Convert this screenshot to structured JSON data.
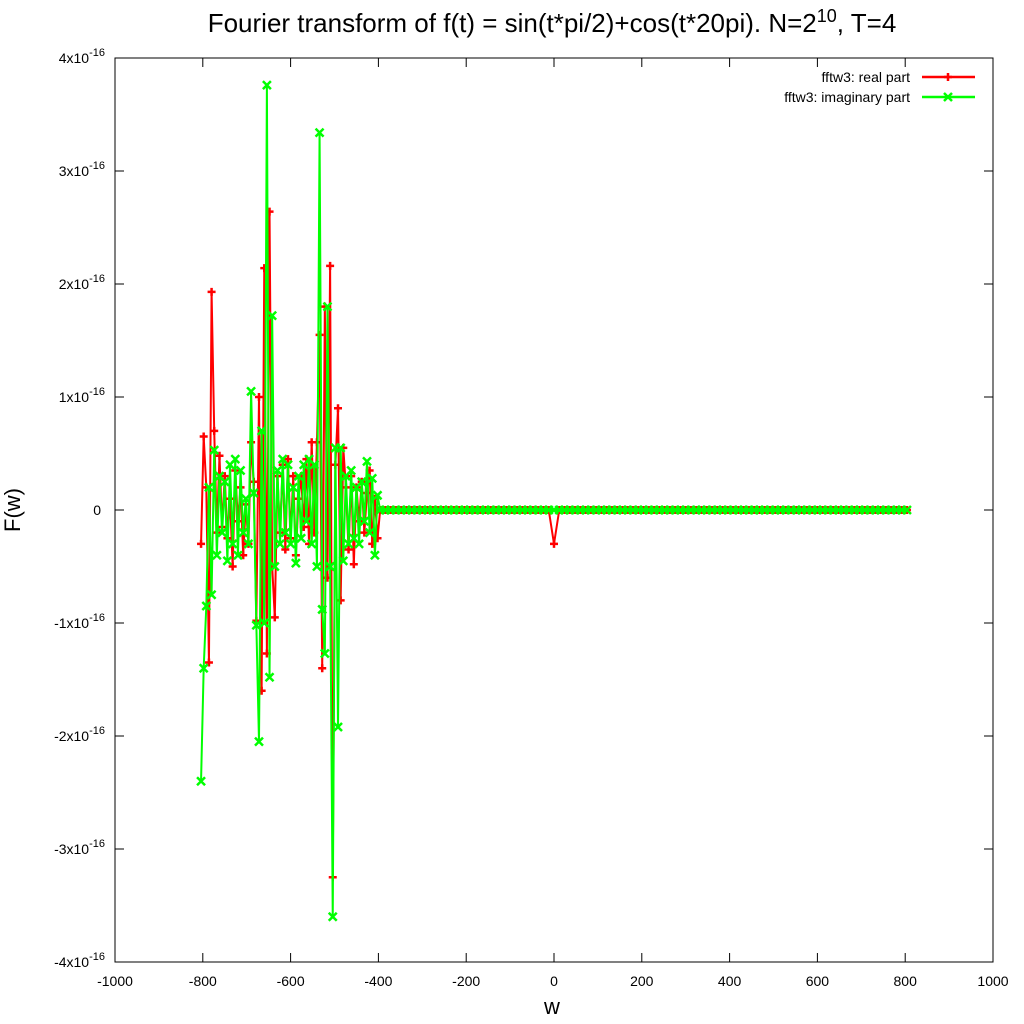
{
  "chart_data": {
    "type": "line",
    "title": [
      "Fourier transform of f(t) = sin(t*pi/2)+cos(t*20pi). N=2",
      "10",
      ", T=4"
    ],
    "xlabel": "w",
    "ylabel": "F(w)",
    "xlim": [
      -1000,
      1000
    ],
    "xticks": [
      -1000,
      -800,
      -600,
      -400,
      -200,
      0,
      200,
      400,
      600,
      800,
      1000
    ],
    "ylim": [
      -4e-16,
      4e-16
    ],
    "yticks": [
      {
        "value": -4e-16,
        "label": "-4x10",
        "sup": "-16"
      },
      {
        "value": -3e-16,
        "label": "-3x10",
        "sup": "-16"
      },
      {
        "value": -2e-16,
        "label": "-2x10",
        "sup": "-16"
      },
      {
        "value": -1e-16,
        "label": "-1x10",
        "sup": "-16"
      },
      0,
      {
        "value": 1e-16,
        "label": "1x10",
        "sup": "-16"
      },
      {
        "value": 2e-16,
        "label": "2x10",
        "sup": "-16"
      },
      {
        "value": 3e-16,
        "label": "3x10",
        "sup": "-16"
      },
      {
        "value": 4e-16,
        "label": "4x10",
        "sup": "-16"
      }
    ],
    "legend": "top right",
    "x": [
      -804,
      -798,
      -792,
      -786,
      -780,
      -774,
      -768,
      -762,
      -756,
      -750,
      -744,
      -738,
      -732,
      -726,
      -720,
      -714,
      -708,
      -702,
      -696,
      -690,
      -684,
      -678,
      -672,
      -666,
      -660,
      -654,
      -648,
      -642,
      -636,
      -630,
      -624,
      -618,
      -612,
      -606,
      -600,
      -594,
      -588,
      -582,
      -576,
      -570,
      -564,
      -558,
      -552,
      -546,
      -540,
      -534,
      -528,
      -522,
      -516,
      -510,
      -504,
      -498,
      -492,
      -486,
      -480,
      -474,
      -468,
      -462,
      -456,
      -450,
      -444,
      -438,
      -432,
      -426,
      -420,
      -414,
      -408,
      -402,
      -396,
      -384,
      -372,
      -360,
      -348,
      -336,
      -324,
      -312,
      -300,
      -288,
      -276,
      -264,
      -252,
      -240,
      -228,
      -216,
      -204,
      -192,
      -180,
      -168,
      -156,
      -144,
      -132,
      -120,
      -108,
      -96,
      -84,
      -72,
      -60,
      -48,
      -36,
      -24,
      -12,
      0,
      12,
      24,
      36,
      48,
      60,
      72,
      84,
      96,
      108,
      120,
      132,
      144,
      156,
      168,
      180,
      192,
      204,
      216,
      228,
      240,
      252,
      264,
      276,
      288,
      300,
      312,
      324,
      336,
      348,
      360,
      372,
      384,
      396,
      408,
      420,
      432,
      444,
      456,
      468,
      480,
      492,
      504,
      516,
      528,
      540,
      552,
      564,
      576,
      588,
      600,
      612,
      624,
      636,
      648,
      660,
      672,
      684,
      696,
      708,
      720,
      732,
      744,
      756,
      768,
      780,
      792,
      804
    ],
    "series": [
      {
        "name": "fftw3: real part",
        "color": "#ff0000",
        "marker": "plus",
        "values": [
          -3e-17,
          6.5e-17,
          2e-17,
          -1.35e-16,
          1.93e-16,
          7e-17,
          -2e-17,
          4.8e-17,
          -1.5e-17,
          3e-17,
          -2.5e-17,
          1e-17,
          -5e-17,
          3.5e-17,
          -1e-17,
          2e-17,
          -4e-17,
          5e-18,
          -3e-17,
          6e-17,
          2.5e-17,
          -9.8e-17,
          1e-16,
          -1.6e-16,
          2.14e-16,
          -1.27e-16,
          2.64e-16,
          -5e-17,
          -9.5e-17,
          3e-17,
          -2e-17,
          4e-17,
          -3.5e-17,
          4.5e-17,
          -2.5e-17,
          3e-17,
          -4e-17,
          1e-17,
          3e-17,
          -1.5e-17,
          4.5e-17,
          -3e-17,
          6e-17,
          -2e-17,
          6e-17,
          1.55e-16,
          -1.4e-16,
          1.8e-16,
          -6e-17,
          2.16e-16,
          -3.25e-16,
          4e-17,
          9e-17,
          -8e-17,
          5.5e-17,
          2e-17,
          -3.5e-17,
          3e-17,
          -4.8e-17,
          2e-17,
          -1e-17,
          2.5e-17,
          -2e-17,
          1.5e-17,
          3.5e-17,
          -3e-17,
          1e-17,
          -2.5e-17,
          0,
          0,
          0,
          0,
          0,
          0,
          0,
          0,
          0,
          0,
          0,
          0,
          0,
          0,
          0,
          0,
          0,
          0,
          0,
          0,
          0,
          0,
          0,
          0,
          0,
          0,
          0,
          0,
          0,
          0,
          0,
          0,
          0,
          -3e-17,
          0,
          0,
          0,
          0,
          0,
          0,
          0,
          0,
          0,
          0,
          0,
          0,
          0,
          0,
          0,
          0,
          0,
          0,
          0,
          0,
          0,
          0,
          0,
          0,
          0,
          0,
          0,
          0,
          0,
          0,
          0,
          0,
          0,
          0,
          0,
          0,
          0,
          0,
          0,
          0,
          0,
          0,
          0,
          0,
          0,
          0,
          0,
          0,
          0,
          0,
          0,
          0,
          0,
          0,
          0,
          0,
          0,
          0,
          0,
          0,
          0,
          0,
          0,
          0,
          0,
          0,
          0
        ]
      },
      {
        "name": "fftw3: imaginary part",
        "color": "#00ff00",
        "marker": "cross",
        "values": [
          -2.4e-16,
          -1.4e-16,
          -8.5e-17,
          2e-17,
          -7.5e-17,
          5.3e-17,
          -4e-17,
          3e-17,
          -2e-17,
          2.5e-17,
          -4.5e-17,
          4e-17,
          -3e-17,
          4.5e-17,
          -4e-17,
          3.5e-17,
          -2e-17,
          1e-17,
          -3e-17,
          1.05e-16,
          1.5e-17,
          -1.02e-16,
          -2.05e-16,
          7e-17,
          -1e-16,
          3.76e-16,
          -1.48e-16,
          1.72e-16,
          -5e-17,
          3.5e-17,
          -3e-17,
          4.5e-17,
          -2e-17,
          4e-17,
          -3e-17,
          2e-17,
          -4.7e-17,
          3e-17,
          -2.5e-17,
          4e-17,
          -1e-17,
          4.5e-17,
          -3e-17,
          4e-17,
          -5e-17,
          3.34e-16,
          -8.8e-17,
          -1.27e-16,
          1.8e-16,
          -5e-17,
          -3.6e-16,
          5.5e-17,
          -1.92e-16,
          5.5e-17,
          -4.5e-17,
          3e-17,
          -3e-17,
          3.5e-17,
          -2.5e-17,
          2e-17,
          -3e-17,
          2.5e-17,
          -1e-17,
          4.3e-17,
          -2e-17,
          2.8e-17,
          -4e-17,
          1.3e-17,
          0,
          0,
          0,
          0,
          0,
          0,
          0,
          0,
          0,
          0,
          0,
          0,
          0,
          0,
          0,
          0,
          0,
          0,
          0,
          0,
          0,
          0,
          0,
          0,
          0,
          0,
          0,
          0,
          0,
          0,
          0,
          0,
          0,
          0,
          0,
          0,
          0,
          0,
          0,
          0,
          0,
          0,
          0,
          0,
          0,
          0,
          0,
          0,
          0,
          0,
          0,
          0,
          0,
          0,
          0,
          0,
          0,
          0,
          0,
          0,
          0,
          0,
          0,
          0,
          0,
          0,
          0,
          0,
          0,
          0,
          0,
          0,
          0,
          0,
          0,
          0,
          0,
          0,
          0,
          0,
          0,
          0,
          0,
          0,
          0,
          0,
          0,
          0,
          0,
          0,
          0,
          0,
          0,
          0,
          0,
          0,
          0,
          0,
          0,
          0,
          0
        ]
      }
    ]
  }
}
